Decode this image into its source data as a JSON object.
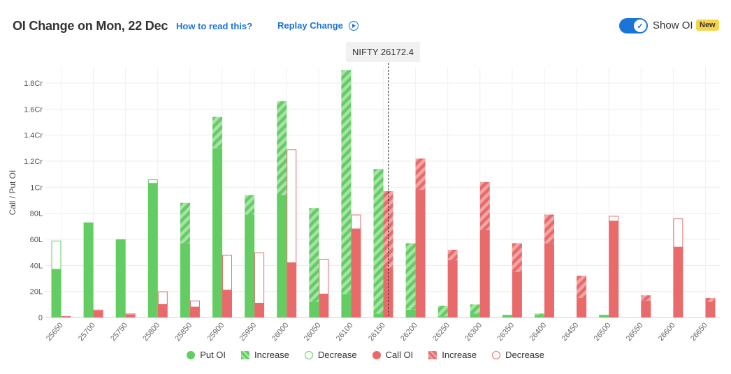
{
  "header": {
    "title": "OI Change on Mon, 22 Dec",
    "how_to_read": "How to read this?",
    "replay": "Replay Change",
    "show_oi_label": "Show OI",
    "show_oi_enabled": true,
    "new_badge": "New"
  },
  "spot_label": "NIFTY 26172.4",
  "legend": {
    "put_oi": "Put OI",
    "put_increase": "Increase",
    "put_decrease": "Decrease",
    "call_oi": "Call OI",
    "call_increase": "Increase",
    "call_decrease": "Decrease"
  },
  "colors": {
    "put": "#63cd63",
    "put_light": "#a8e2a8",
    "call": "#e96a6a",
    "call_light": "#f1a5a5",
    "accent": "#1b74d8"
  },
  "chart_data": {
    "type": "bar",
    "ylabel": "Call / Put OI",
    "ylim": [
      0,
      18200000
    ],
    "yticks": [
      0,
      2000000,
      4000000,
      6000000,
      8000000,
      10000000,
      12000000,
      14000000,
      16000000,
      18000000
    ],
    "ytick_labels": [
      "0",
      "20L",
      "40L",
      "60L",
      "80L",
      "1Cr",
      "1.2Cr",
      "1.4Cr",
      "1.6Cr",
      "1.8Cr"
    ],
    "spot": 26172.4,
    "categories": [
      "25650",
      "25700",
      "25750",
      "25800",
      "25850",
      "25900",
      "25950",
      "26000",
      "26050",
      "26100",
      "26150",
      "26200",
      "26250",
      "26300",
      "26350",
      "26400",
      "26450",
      "26500",
      "26550",
      "26600",
      "26650"
    ],
    "series": [
      {
        "name": "Put OI",
        "values": [
          3700000,
          7300000,
          6000000,
          10300000,
          5700000,
          13000000,
          7900000,
          9400000,
          1200000,
          1800000,
          300000,
          600000,
          100000,
          300000,
          200000,
          200000,
          0,
          200000,
          0,
          0,
          0
        ]
      },
      {
        "name": "Increase",
        "values": [
          0,
          0,
          0,
          0,
          3100000,
          2400000,
          1500000,
          7200000,
          7200000,
          17200000,
          11100000,
          5100000,
          800000,
          700000,
          0,
          100000,
          0,
          0,
          0,
          0,
          0
        ]
      },
      {
        "name": "Decrease",
        "values": [
          2200000,
          0,
          0,
          300000,
          0,
          0,
          0,
          0,
          0,
          0,
          0,
          0,
          0,
          0,
          0,
          0,
          0,
          0,
          0,
          0,
          0
        ]
      },
      {
        "name": "Call OI",
        "values": [
          100000,
          500000,
          200000,
          1000000,
          800000,
          2100000,
          1100000,
          4200000,
          1800000,
          6800000,
          3800000,
          9800000,
          4400000,
          6700000,
          3500000,
          5700000,
          1500000,
          7400000,
          1300000,
          5400000,
          1200000
        ]
      },
      {
        "name": "Increase",
        "values": [
          0,
          0,
          0,
          0,
          0,
          0,
          0,
          0,
          0,
          0,
          5900000,
          2400000,
          800000,
          3700000,
          2200000,
          2200000,
          1700000,
          0,
          400000,
          0,
          300000
        ]
      },
      {
        "name": "Decrease",
        "values": [
          0,
          100000,
          100000,
          1000000,
          500000,
          2700000,
          3900000,
          8700000,
          2700000,
          1100000,
          0,
          0,
          0,
          0,
          0,
          0,
          0,
          400000,
          0,
          2200000,
          0
        ]
      }
    ]
  }
}
